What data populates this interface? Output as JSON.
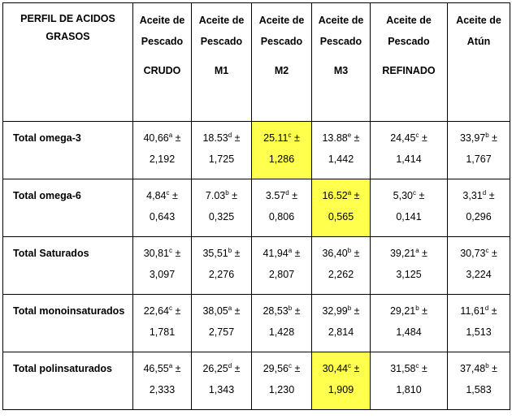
{
  "table": {
    "header": {
      "first": [
        "PERFIL DE ACIDOS",
        "GRASOS"
      ],
      "columns": [
        {
          "l1": "Aceite de",
          "l2": "Pescado",
          "l3": "CRUDO"
        },
        {
          "l1": "Aceite de",
          "l2": "Pescado",
          "l3": "M1"
        },
        {
          "l1": "Aceite de",
          "l2": "Pescado",
          "l3": "M2"
        },
        {
          "l1": "Aceite de",
          "l2": "Pescado",
          "l3": "M3"
        },
        {
          "l1": "Aceite de",
          "l2": "Pescado",
          "l3": "REFINADO"
        },
        {
          "l1": "Aceite de",
          "l2": "Atún",
          "l3": ""
        }
      ]
    },
    "highlight_color": "#ffff4d",
    "rows": [
      {
        "label": "Total omega-3",
        "cells": [
          {
            "mean": "40,66",
            "sup": "a",
            "sd": "2,192",
            "hl": false
          },
          {
            "mean": "18.53",
            "sup": "d",
            "sd": "1,725",
            "hl": false
          },
          {
            "mean": "25.11",
            "sup": "c",
            "sd": "1,286",
            "hl": true
          },
          {
            "mean": "13.88",
            "sup": "e",
            "sd": "1,442",
            "hl": false
          },
          {
            "mean": "24,45",
            "sup": "c",
            "sd": "1,414",
            "hl": false
          },
          {
            "mean": "33,97",
            "sup": "b",
            "sd": "1,767",
            "hl": false
          }
        ]
      },
      {
        "label": "Total omega-6",
        "cells": [
          {
            "mean": "4,84",
            "sup": "c",
            "sd": "0,643",
            "hl": false
          },
          {
            "mean": "7.03",
            "sup": "b",
            "sd": "0,325",
            "hl": false
          },
          {
            "mean": "3.57",
            "sup": "d",
            "sd": "0,806",
            "hl": false
          },
          {
            "mean": "16.52",
            "sup": "a",
            "sd": "0,565",
            "hl": true
          },
          {
            "mean": "5,30",
            "sup": "c",
            "sd": "0,141",
            "hl": false
          },
          {
            "mean": "3,31",
            "sup": "d",
            "sd": "0,296",
            "hl": false
          }
        ]
      },
      {
        "label": "Total Saturados",
        "cells": [
          {
            "mean": "30,81",
            "sup": "c",
            "sd": "3,097",
            "hl": false
          },
          {
            "mean": "35,51",
            "sup": "b",
            "sd": "2,276",
            "hl": false
          },
          {
            "mean": "41,94",
            "sup": "a",
            "sd": "2,807",
            "hl": false
          },
          {
            "mean": "36,40",
            "sup": "b",
            "sd": "2,262",
            "hl": false
          },
          {
            "mean": "39,21",
            "sup": "a",
            "sd": "3,125",
            "hl": false
          },
          {
            "mean": "30,73",
            "sup": "c",
            "sd": "3,224",
            "hl": false
          }
        ]
      },
      {
        "label": "Total monoinsaturados",
        "cells": [
          {
            "mean": "22,64",
            "sup": "c",
            "sd": "1,781",
            "hl": false
          },
          {
            "mean": "38,05",
            "sup": "a",
            "sd": "2,757",
            "hl": false
          },
          {
            "mean": "28,53",
            "sup": "b",
            "sd": "1,428",
            "hl": false
          },
          {
            "mean": "32,99",
            "sup": "b",
            "sd": "2,814",
            "hl": false
          },
          {
            "mean": "29,21",
            "sup": "b",
            "sd": "1,484",
            "hl": false
          },
          {
            "mean": "11,61",
            "sup": "d",
            "sd": "1,513",
            "hl": false
          }
        ]
      },
      {
        "label": "Total polinsaturados",
        "cells": [
          {
            "mean": "46,55",
            "sup": "a",
            "sd": "2,333",
            "hl": false
          },
          {
            "mean": "26,25",
            "sup": "d",
            "sd": "1,343",
            "hl": false
          },
          {
            "mean": "29,56",
            "sup": "c",
            "sd": "1,230",
            "hl": false
          },
          {
            "mean": "30,44",
            "sup": "c",
            "sd": "1,909",
            "hl": true
          },
          {
            "mean": "31,58",
            "sup": "c",
            "sd": "1,810",
            "hl": false
          },
          {
            "mean": "37,48",
            "sup": "b",
            "sd": "1,583",
            "hl": false
          }
        ]
      }
    ]
  }
}
